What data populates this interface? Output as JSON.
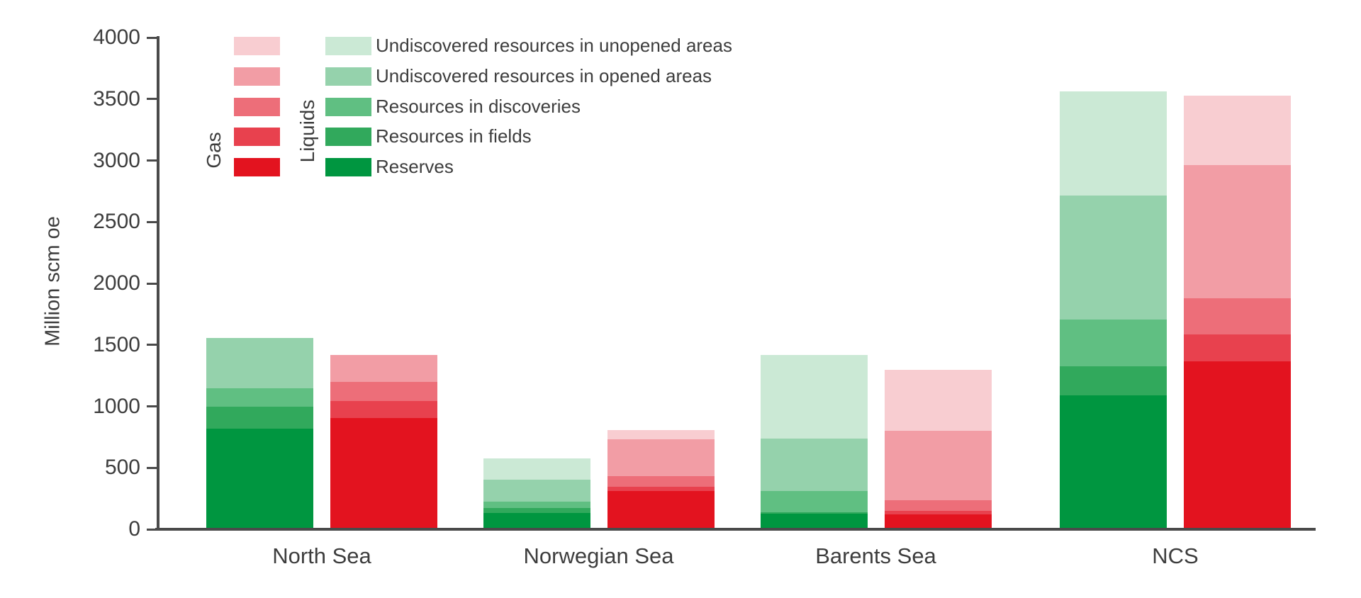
{
  "chart_data": {
    "type": "bar",
    "stacked": true,
    "title": "",
    "ylabel": "Million scm oe",
    "xlabel": "",
    "ylim": [
      0,
      4000
    ],
    "yticks": [
      0,
      500,
      1000,
      1500,
      2000,
      2500,
      3000,
      3500,
      4000
    ],
    "grid": false,
    "legend_position": "top-left-inside",
    "categories": [
      "North Sea",
      "Norwegian Sea",
      "Barents Sea",
      "NCS"
    ],
    "segments": [
      "Reserves",
      "Resources in fields",
      "Resources in discoveries",
      "Undiscovered resources in opened areas",
      "Undiscovered resources in unopened areas"
    ],
    "series": [
      {
        "name": "Liquids",
        "colors": [
          "#009640",
          "#31a95c",
          "#60bf82",
          "#95d2ac",
          "#cbe9d5"
        ],
        "values": [
          [
            820,
            175,
            150,
            410,
            0
          ],
          [
            135,
            40,
            50,
            180,
            170
          ],
          [
            125,
            15,
            170,
            425,
            685
          ],
          [
            1090,
            235,
            380,
            1010,
            845
          ]
        ]
      },
      {
        "name": "Gas",
        "colors": [
          "#e3131f",
          "#e8414e",
          "#ed6e79",
          "#f29da5",
          "#f8cdd1"
        ],
        "values": [
          [
            905,
            140,
            155,
            215,
            0
          ],
          [
            310,
            35,
            85,
            300,
            75
          ],
          [
            120,
            30,
            85,
            565,
            495
          ],
          [
            1365,
            220,
            295,
            1085,
            560
          ]
        ]
      }
    ],
    "colors": {
      "axis_line": "#4a4a4a",
      "text": "#3d3d3d",
      "background": "#ffffff"
    }
  }
}
